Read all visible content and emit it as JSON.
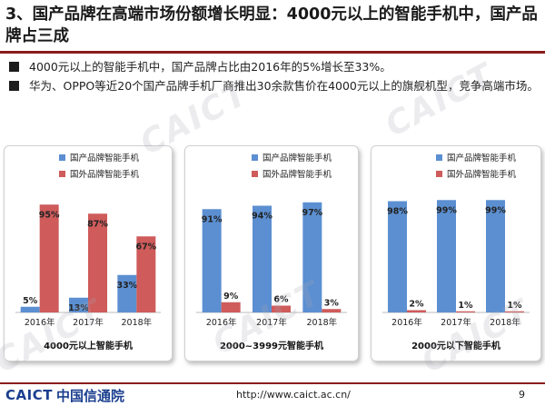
{
  "header": {
    "title": "3、国产品牌在高端市场份额增长明显：4000元以上的智能手机中，国产品牌占三成"
  },
  "bullets": [
    "4000元以上的智能手机中，国产品牌占比由2016年的5%增长至33%。",
    "华为、OPPO等近20个国产品牌手机厂商推出30余款售价在4000元以上的旗舰机型，竞争高端市场。"
  ],
  "colors": {
    "domestic": "#5b8fd1",
    "foreign": "#cf5b5b",
    "title_rule": "#8a1c1c",
    "brand_blue": "#1b3f8f"
  },
  "chart_data": [
    {
      "type": "bar",
      "title": "4000元以上智能手机",
      "categories": [
        "2016年",
        "2017年",
        "2018年"
      ],
      "series": [
        {
          "name": "国产品牌智能手机",
          "values": [
            5,
            13,
            33
          ],
          "labels": [
            "5%",
            "13%",
            "33%"
          ]
        },
        {
          "name": "国外品牌智能手机",
          "values": [
            95,
            87,
            67
          ],
          "labels": [
            "95%",
            "87%",
            "67%"
          ]
        }
      ],
      "ylim": [
        0,
        100
      ],
      "legend": "top-left",
      "grid": false
    },
    {
      "type": "bar",
      "title": "2000~3999元智能手机",
      "categories": [
        "2016年",
        "2017年",
        "2018年"
      ],
      "series": [
        {
          "name": "国产品牌智能手机",
          "values": [
            91,
            94,
            97
          ],
          "labels": [
            "91%",
            "94%",
            "97%"
          ]
        },
        {
          "name": "国外品牌智能手机",
          "values": [
            9,
            6,
            3
          ],
          "labels": [
            "9%",
            "6%",
            "3%"
          ]
        }
      ],
      "ylim": [
        0,
        100
      ],
      "legend": "top-center",
      "grid": false
    },
    {
      "type": "bar",
      "title": "2000元以下智能手机",
      "categories": [
        "2016年",
        "2017年",
        "2018年"
      ],
      "series": [
        {
          "name": "国产品牌智能手机",
          "values": [
            98,
            99,
            99
          ],
          "labels": [
            "98%",
            "99%",
            "99%"
          ]
        },
        {
          "name": "国外品牌智能手机",
          "values": [
            2,
            1,
            1
          ],
          "labels": [
            "2%",
            "1%",
            "1%"
          ]
        }
      ],
      "ylim": [
        0,
        100
      ],
      "legend": "top-center",
      "grid": false
    }
  ],
  "watermark": "CAICT",
  "footer": {
    "brand": "CAICT",
    "brand_cn": "中国信通院",
    "url": "http://www.caict.ac.cn/",
    "page_number": "9"
  }
}
